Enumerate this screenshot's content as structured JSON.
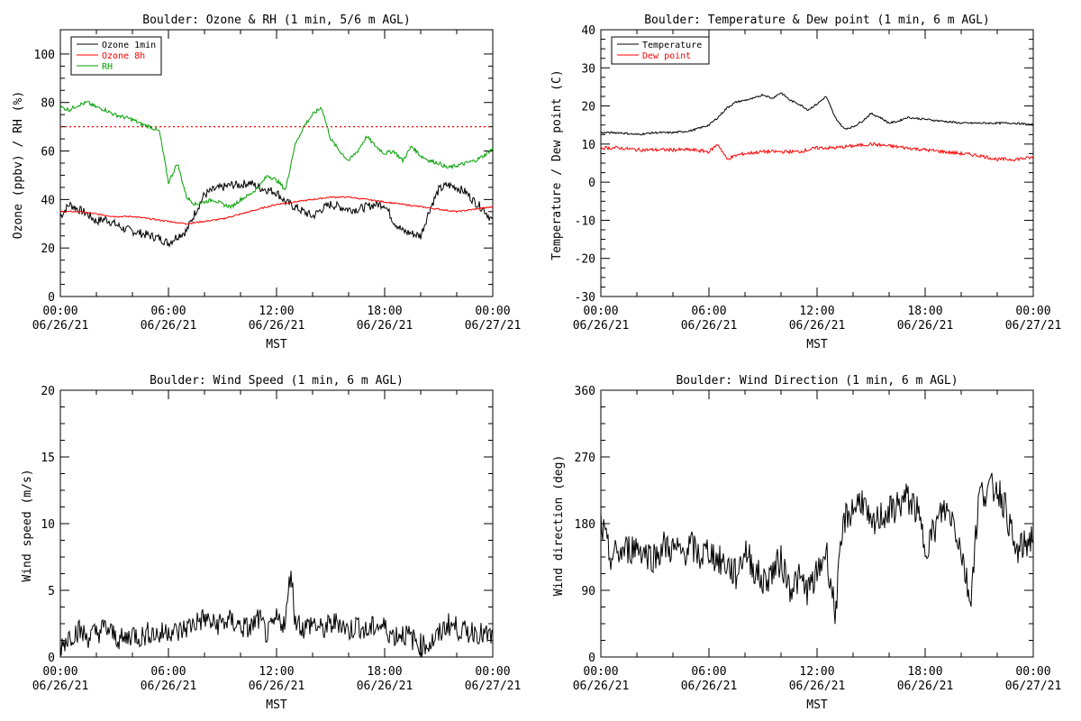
{
  "chart_data": [
    {
      "type": "line",
      "title": "Boulder: Ozone & RH (1 min, 5/6 m AGL)",
      "xlabel": "MST",
      "ylabel": "Ozone (ppbv) / RH (%)",
      "xlim": [
        "06/26/21 00:00",
        "06/27/21 00:00"
      ],
      "ylim": [
        0,
        110
      ],
      "yticks": [
        0,
        20,
        40,
        60,
        80,
        100
      ],
      "xticks": [
        [
          "00:00",
          "06/26/21"
        ],
        [
          "06:00",
          "06/26/21"
        ],
        [
          "12:00",
          "06/26/21"
        ],
        [
          "18:00",
          "06/26/21"
        ],
        [
          "00:00",
          "06/27/21"
        ]
      ],
      "legend_position": "top-left",
      "reference_line": {
        "y": 70,
        "color": "#ff0000",
        "style": "dotted"
      },
      "series": [
        {
          "name": "Ozone 1min",
          "color": "#000000",
          "x": [
            0,
            0.5,
            1,
            1.5,
            2,
            2.5,
            3,
            3.5,
            4,
            4.5,
            5,
            5.5,
            6,
            6.5,
            7,
            7.5,
            8,
            8.5,
            9,
            9.5,
            10,
            10.5,
            11,
            11.5,
            12,
            12.5,
            13,
            13.5,
            14,
            14.5,
            15,
            15.5,
            16,
            16.5,
            17,
            17.5,
            18,
            18.5,
            19,
            19.5,
            20,
            20.5,
            21,
            21.5,
            22,
            22.5,
            23,
            23.5,
            24
          ],
          "y": [
            33,
            38,
            36,
            34,
            31,
            32,
            30,
            28,
            27,
            26,
            25,
            24,
            22,
            25,
            27,
            35,
            42,
            44,
            45,
            46,
            46,
            47,
            45,
            44,
            43,
            39,
            37,
            35,
            33,
            36,
            38,
            37,
            36,
            36,
            37,
            38,
            38,
            31,
            27,
            26,
            25,
            36,
            44,
            46,
            45,
            43,
            39,
            36,
            31
          ]
        },
        {
          "name": "Ozone 8h",
          "color": "#ff0000",
          "x": [
            0,
            1,
            2,
            3,
            4,
            5,
            6,
            7,
            8,
            9,
            10,
            11,
            12,
            13,
            14,
            15,
            16,
            17,
            18,
            19,
            20,
            21,
            22,
            23,
            24
          ],
          "y": [
            35,
            35,
            34,
            33,
            33,
            32,
            31,
            30,
            31,
            32,
            34,
            36,
            38,
            39,
            40,
            41,
            41,
            40,
            39,
            38,
            37,
            36,
            35,
            36,
            37
          ]
        },
        {
          "name": "RH",
          "color": "#00a000",
          "x": [
            0,
            0.5,
            1,
            1.5,
            2,
            2.5,
            3,
            3.5,
            4,
            4.5,
            5,
            5.5,
            6,
            6.5,
            7,
            7.5,
            8,
            8.5,
            9,
            9.5,
            10,
            10.5,
            11,
            11.5,
            12,
            12.5,
            13,
            13.5,
            14,
            14.5,
            15,
            15.5,
            16,
            16.5,
            17,
            17.5,
            18,
            18.5,
            19,
            19.5,
            20,
            20.5,
            21,
            21.5,
            22,
            22.5,
            23,
            23.5,
            24
          ],
          "y": [
            78,
            77,
            79,
            80,
            78,
            77,
            75,
            74,
            73,
            71,
            70,
            68,
            47,
            55,
            41,
            38,
            39,
            40,
            38,
            37,
            40,
            42,
            45,
            50,
            48,
            44,
            62,
            70,
            75,
            78,
            65,
            60,
            56,
            60,
            66,
            62,
            59,
            60,
            56,
            62,
            58,
            56,
            55,
            53,
            54,
            55,
            56,
            58,
            61
          ]
        }
      ]
    },
    {
      "type": "line",
      "title": "Boulder: Temperature & Dew point (1 min, 6 m AGL)",
      "xlabel": "MST",
      "ylabel": "Temperature / Dew point (C)",
      "xlim": [
        "06/26/21 00:00",
        "06/27/21 00:00"
      ],
      "ylim": [
        -30,
        40
      ],
      "yticks": [
        -30,
        -20,
        -10,
        0,
        10,
        20,
        30,
        40
      ],
      "xticks": [
        [
          "00:00",
          "06/26/21"
        ],
        [
          "06:00",
          "06/26/21"
        ],
        [
          "12:00",
          "06/26/21"
        ],
        [
          "18:00",
          "06/26/21"
        ],
        [
          "00:00",
          "06/27/21"
        ]
      ],
      "legend_position": "top-left",
      "series": [
        {
          "name": "Temperature",
          "color": "#000000",
          "x": [
            0,
            1,
            2,
            3,
            4,
            5,
            6,
            6.5,
            7,
            7.5,
            8,
            8.5,
            9,
            9.5,
            10,
            10.5,
            11,
            11.5,
            12,
            12.5,
            13,
            13.5,
            14,
            14.5,
            15,
            15.5,
            16,
            16.5,
            17,
            18,
            19,
            20,
            21,
            22,
            23,
            24
          ],
          "y": [
            13,
            13,
            12.5,
            13,
            13,
            13.5,
            15,
            17,
            19.5,
            21,
            21.5,
            22,
            23,
            22,
            23.5,
            21.5,
            20.5,
            19,
            20.5,
            22.5,
            17,
            14,
            14.5,
            16,
            18,
            17,
            15.5,
            16,
            17,
            16.5,
            16,
            15.5,
            15.5,
            15.5,
            15.5,
            15
          ]
        },
        {
          "name": "Dew point",
          "color": "#ff0000",
          "x": [
            0,
            1,
            2,
            3,
            4,
            5,
            6,
            6.5,
            7,
            7.5,
            8,
            9,
            10,
            11,
            12,
            13,
            14,
            15,
            16,
            17,
            18,
            19,
            20,
            21,
            22,
            23,
            24
          ],
          "y": [
            9,
            9,
            8.5,
            8.5,
            8.5,
            8.5,
            8,
            10,
            6,
            7,
            7.5,
            8,
            8,
            8,
            9,
            9,
            9.5,
            10,
            9.5,
            9,
            8.5,
            8,
            7.5,
            7,
            6,
            6,
            6.5
          ]
        }
      ]
    },
    {
      "type": "line",
      "title": "Boulder: Wind Speed (1 min, 6 m AGL)",
      "xlabel": "MST",
      "ylabel": "Wind speed (m/s)",
      "xlim": [
        "06/26/21 00:00",
        "06/27/21 00:00"
      ],
      "ylim": [
        0,
        20
      ],
      "yticks": [
        0,
        5,
        10,
        15,
        20
      ],
      "xticks": [
        [
          "00:00",
          "06/26/21"
        ],
        [
          "06:00",
          "06/26/21"
        ],
        [
          "12:00",
          "06/26/21"
        ],
        [
          "18:00",
          "06/26/21"
        ],
        [
          "00:00",
          "06/27/21"
        ]
      ],
      "series": [
        {
          "name": "",
          "color": "#000000",
          "x": [
            0,
            0.5,
            1,
            1.5,
            2,
            2.5,
            3,
            3.5,
            4,
            4.5,
            5,
            5.5,
            6,
            6.5,
            7,
            7.5,
            8,
            8.5,
            9,
            9.5,
            10,
            10.5,
            11,
            11.5,
            12,
            12.5,
            12.8,
            13,
            13.5,
            14,
            14.5,
            15,
            15.5,
            16,
            16.5,
            17,
            17.5,
            18,
            18.5,
            19,
            19.5,
            20,
            20.5,
            21,
            21.5,
            22,
            22.5,
            23,
            23.5,
            24
          ],
          "y": [
            0.8,
            1.6,
            2.0,
            1.5,
            1.8,
            2.2,
            1.6,
            1.2,
            1.8,
            1.5,
            1.9,
            1.6,
            2.1,
            1.8,
            2.2,
            2.6,
            2.9,
            2.4,
            2.6,
            2.7,
            2.3,
            2.1,
            2.9,
            1.6,
            2.8,
            2.6,
            6.8,
            3.0,
            2.1,
            2.6,
            2.0,
            2.4,
            2.7,
            1.9,
            2.5,
            1.8,
            2.4,
            2.2,
            1.6,
            1.8,
            1.4,
            0.9,
            1.0,
            1.6,
            2.5,
            2.2,
            1.8,
            2.0,
            1.6,
            1.5
          ]
        }
      ]
    },
    {
      "type": "line",
      "title": "Boulder: Wind Direction (1 min, 6 m AGL)",
      "xlabel": "MST",
      "ylabel": "Wind direction (deg)",
      "xlim": [
        "06/26/21 00:00",
        "06/27/21 00:00"
      ],
      "ylim": [
        0,
        360
      ],
      "yticks": [
        0,
        90,
        180,
        270,
        360
      ],
      "xticks": [
        [
          "00:00",
          "06/26/21"
        ],
        [
          "06:00",
          "06/26/21"
        ],
        [
          "12:00",
          "06/26/21"
        ],
        [
          "18:00",
          "06/26/21"
        ],
        [
          "00:00",
          "06/27/21"
        ]
      ],
      "series": [
        {
          "name": "",
          "color": "#000000",
          "x": [
            0,
            0.5,
            1,
            1.5,
            2,
            2.5,
            3,
            3.5,
            4,
            4.5,
            5,
            5.5,
            6,
            6.5,
            7,
            7.5,
            8,
            8.5,
            9,
            9.5,
            10,
            10.5,
            11,
            11.5,
            12,
            12.5,
            13,
            13.5,
            14,
            14.5,
            15,
            15.5,
            16,
            16.5,
            17,
            17.5,
            18,
            18.5,
            19,
            19.5,
            20,
            20.5,
            21,
            21.5,
            22,
            22.5,
            23,
            23.5,
            24
          ],
          "y": [
            180,
            135,
            140,
            145,
            150,
            140,
            135,
            150,
            145,
            140,
            150,
            135,
            145,
            130,
            125,
            110,
            145,
            120,
            100,
            115,
            130,
            95,
            105,
            90,
            110,
            145,
            60,
            185,
            200,
            215,
            170,
            190,
            195,
            205,
            215,
            200,
            150,
            170,
            200,
            190,
            145,
            75,
            220,
            225,
            230,
            200,
            140,
            150,
            165
          ]
        }
      ]
    }
  ]
}
